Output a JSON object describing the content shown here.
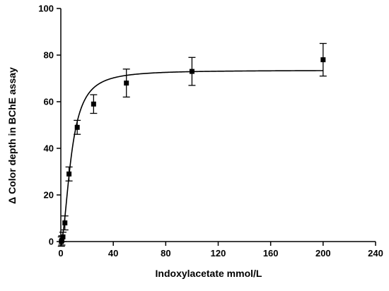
{
  "chart_data": {
    "type": "scatter",
    "title": "",
    "xlabel": "Indoxylacetate mmol/L",
    "ylabel": "Δ Color depth in BChE assay",
    "xlim": [
      0,
      240
    ],
    "ylim": [
      0,
      100
    ],
    "x_ticks": [
      0,
      40,
      80,
      120,
      160,
      200,
      240
    ],
    "y_ticks": [
      0,
      20,
      40,
      60,
      80,
      100
    ],
    "x_tick_labels": [
      "0",
      "40",
      "80",
      "120",
      "160",
      "200",
      "240"
    ],
    "y_tick_labels": [
      "0",
      "20",
      "40",
      "60",
      "80",
      "100"
    ],
    "grid": false,
    "series": [
      {
        "marker": "square",
        "points": [
          {
            "x": 0.4,
            "y": 0,
            "err": 2
          },
          {
            "x": 0.8,
            "y": 0.5,
            "err": 2
          },
          {
            "x": 1.6,
            "y": 2,
            "err": 2
          },
          {
            "x": 3.1,
            "y": 8,
            "err": 3
          },
          {
            "x": 6.25,
            "y": 29,
            "err": 3
          },
          {
            "x": 12.5,
            "y": 49,
            "err": 3
          },
          {
            "x": 25,
            "y": 59,
            "err": 4
          },
          {
            "x": 50,
            "y": 68,
            "err": 6
          },
          {
            "x": 100,
            "y": 73,
            "err": 6
          },
          {
            "x": 200,
            "y": 78,
            "err": 7
          }
        ]
      }
    ],
    "fit_curve": {
      "model": "hill",
      "vmax": 73.5,
      "k": 8,
      "n": 1.9
    },
    "colors": {
      "axis": "#000000",
      "marker": "#000000",
      "curve": "#000000"
    }
  }
}
